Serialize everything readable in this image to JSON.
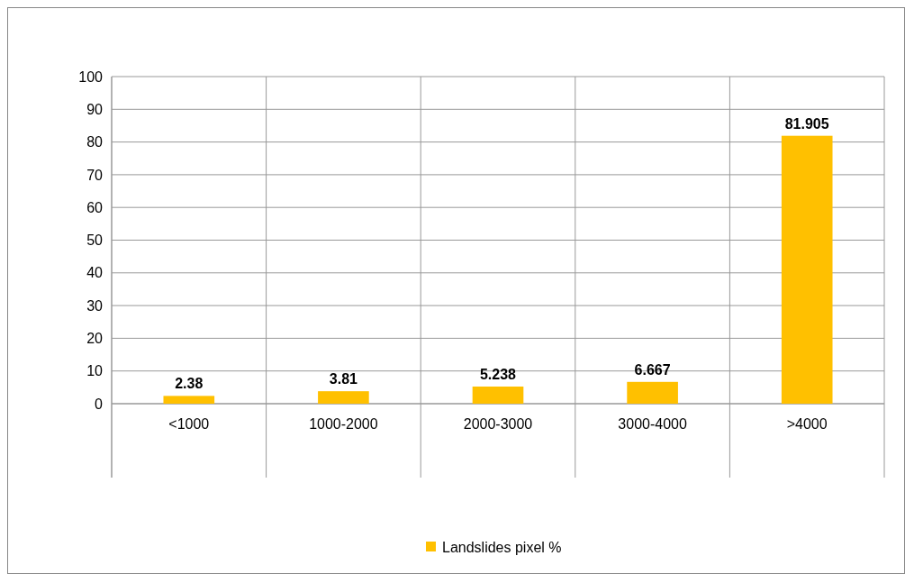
{
  "chart_data": {
    "type": "bar",
    "categories": [
      "<1000",
      "1000-2000",
      "2000-3000",
      "3000-4000",
      ">4000"
    ],
    "series": [
      {
        "name": "Landslides pixel %",
        "color": "#ffc000",
        "values": [
          2.38,
          3.81,
          5.238,
          6.667,
          81.905
        ]
      }
    ],
    "ylim": [
      0,
      100
    ],
    "yticks": [
      0,
      10,
      20,
      30,
      40,
      50,
      60,
      70,
      80,
      90,
      100
    ],
    "grid": true,
    "legend": "bottom",
    "data_labels": true
  }
}
